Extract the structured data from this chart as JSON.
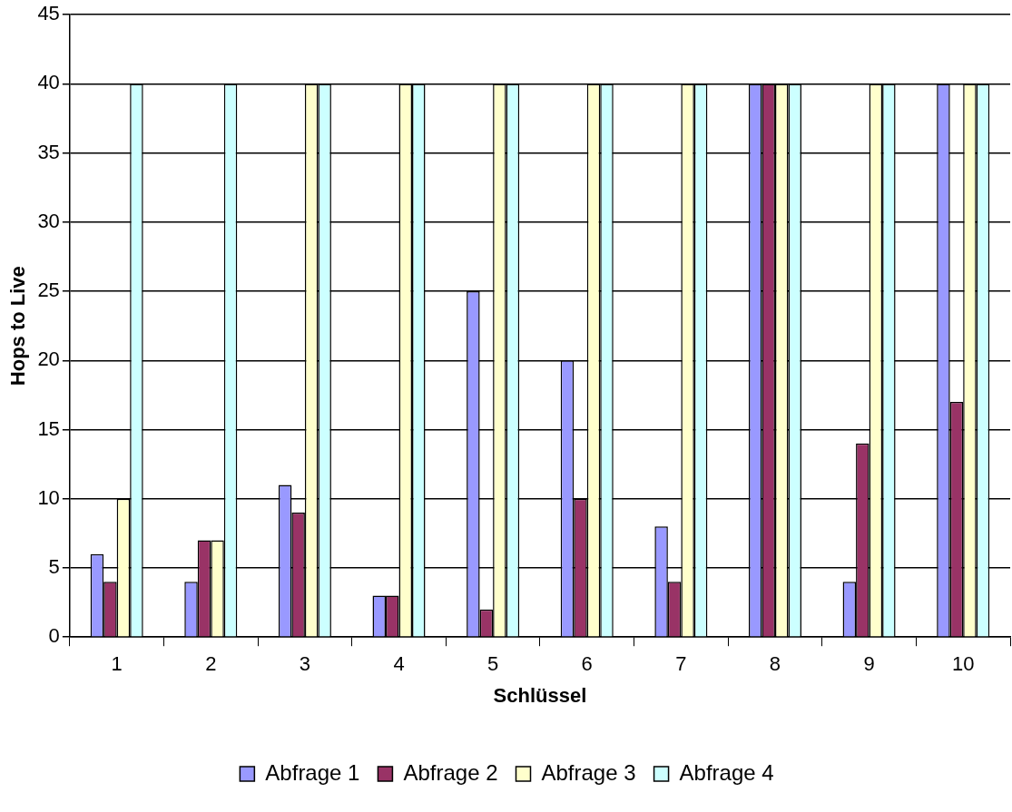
{
  "chart_data": {
    "type": "bar",
    "xlabel": "Schlüssel",
    "ylabel": "Hops to Live",
    "categories": [
      "1",
      "2",
      "3",
      "4",
      "5",
      "6",
      "7",
      "8",
      "9",
      "10"
    ],
    "series": [
      {
        "name": "Abfrage 1",
        "color": "#9999ff",
        "values": [
          6,
          4,
          11,
          3,
          25,
          20,
          8,
          40,
          4,
          40
        ]
      },
      {
        "name": "Abfrage 2",
        "color": "#993366",
        "values": [
          4,
          7,
          9,
          3,
          2,
          10,
          4,
          40,
          14,
          17
        ]
      },
      {
        "name": "Abfrage 3",
        "color": "#ffffcc",
        "values": [
          10,
          7,
          40,
          40,
          40,
          40,
          40,
          40,
          40,
          40
        ]
      },
      {
        "name": "Abfrage 4",
        "color": "#ccffff",
        "values": [
          40,
          40,
          40,
          40,
          40,
          40,
          40,
          40,
          40,
          40
        ]
      }
    ],
    "ylim": [
      0,
      45
    ],
    "yticks": [
      0,
      5,
      10,
      15,
      20,
      25,
      30,
      35,
      40,
      45
    ],
    "grid": "y",
    "legend": "bottom"
  }
}
